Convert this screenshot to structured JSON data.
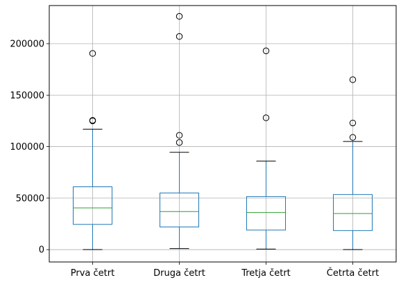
{
  "chart_data": {
    "type": "boxplot",
    "title": "",
    "xlabel": "",
    "ylabel": "",
    "ylim": [
      -12000,
      237000
    ],
    "grid": true,
    "yticks": [
      0,
      50000,
      100000,
      150000,
      200000
    ],
    "ytick_labels": [
      "0",
      "50000",
      "100000",
      "150000",
      "200000"
    ],
    "categories": [
      "Prva četrt",
      "Druga četrt",
      "Tretja četrt",
      "Četrta četrt"
    ],
    "boxes": [
      {
        "whisker_low": 0,
        "q1": 24500,
        "median": 40500,
        "q3": 61000,
        "whisker_high": 117000,
        "outliers": [
          125000,
          125500,
          190500
        ]
      },
      {
        "whisker_low": 1000,
        "q1": 22000,
        "median": 37000,
        "q3": 55000,
        "whisker_high": 94500,
        "outliers": [
          104000,
          111000,
          207000,
          226500
        ]
      },
      {
        "whisker_low": 500,
        "q1": 19000,
        "median": 36000,
        "q3": 51500,
        "whisker_high": 86000,
        "outliers": [
          128000,
          193000
        ]
      },
      {
        "whisker_low": 0,
        "q1": 18500,
        "median": 35000,
        "q3": 53500,
        "whisker_high": 105000,
        "outliers": [
          109000,
          123000,
          165000
        ]
      }
    ],
    "colors": {
      "box": "#1f77b4",
      "median": "#2ca02c",
      "whisker_cap": "#000000",
      "outlier": "#000000",
      "grid": "#b0b0b0",
      "axes": "#000000"
    }
  }
}
